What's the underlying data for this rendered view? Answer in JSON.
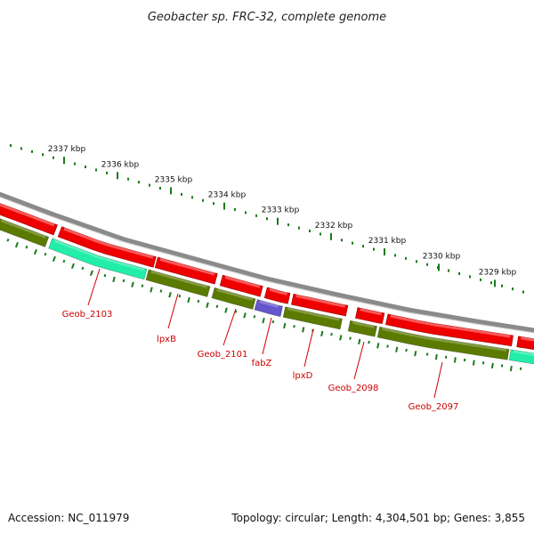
{
  "title": "Geobacter sp. FRC-32, complete genome",
  "footer": {
    "accession": "Accession: NC_011979",
    "topology": "Topology: circular; Length: 4,304,501 bp; Genes: 3,855"
  },
  "colors": {
    "backbone": "#8a8a8a",
    "forward_cds": "#ee0000",
    "reverse_cds": "#5a7a00",
    "rna_gene": "#22eeaa",
    "fabZ": "#6655cc",
    "ticks": "#1a7a1a",
    "labels": "#cc0000"
  },
  "kbp_ticks": [
    "2337 kbp",
    "2336 kbp",
    "2335 kbp",
    "2334 kbp",
    "2333 kbp",
    "2332 kbp",
    "2331 kbp",
    "2330 kbp",
    "2329 kbp"
  ],
  "gene_labels": [
    "Geob_2103",
    "lpxB",
    "Geob_2101",
    "fabZ",
    "lpxD",
    "Geob_2098",
    "Geob_2097"
  ]
}
